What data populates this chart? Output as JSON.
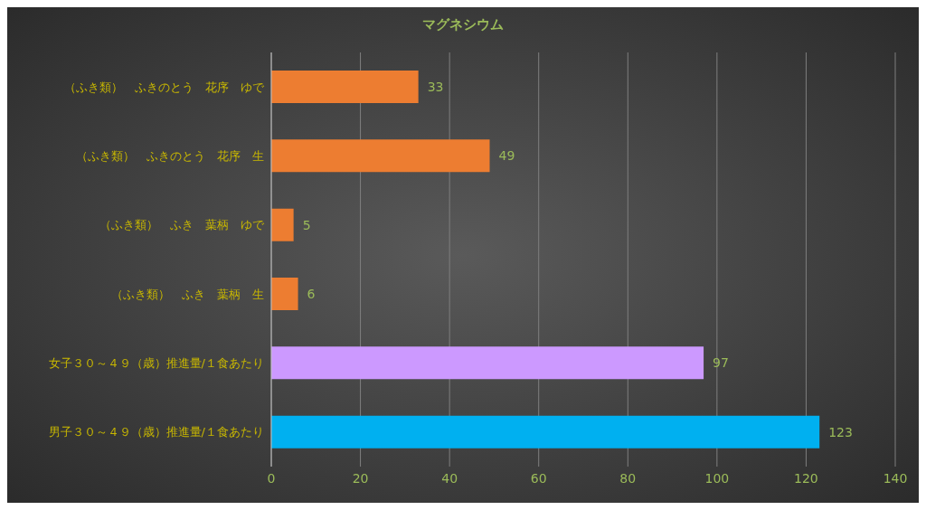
{
  "chart_data": {
    "type": "bar",
    "orientation": "horizontal",
    "title": "マグネシウム",
    "categories": [
      "（ふき類）　ふきのとう　花序　ゆで",
      "（ふき類）　ふきのとう　花序　生",
      "（ふき類）　ふき　葉柄　ゆで",
      "（ふき類）　ふき　葉柄　生",
      "女子３０～４９（歳）推進量/１食あたり",
      "男子３０～４９（歳）推進量/１食あたり"
    ],
    "values": [
      33,
      49,
      5,
      6,
      97,
      123
    ],
    "colors": [
      "#ed7d31",
      "#ed7d31",
      "#ed7d31",
      "#ed7d31",
      "#cc99ff",
      "#00b0f0"
    ],
    "xlim": [
      0,
      140
    ],
    "xticks": [
      0,
      20,
      40,
      60,
      80,
      100,
      120,
      140
    ],
    "grid": "x",
    "data_labels": true
  }
}
